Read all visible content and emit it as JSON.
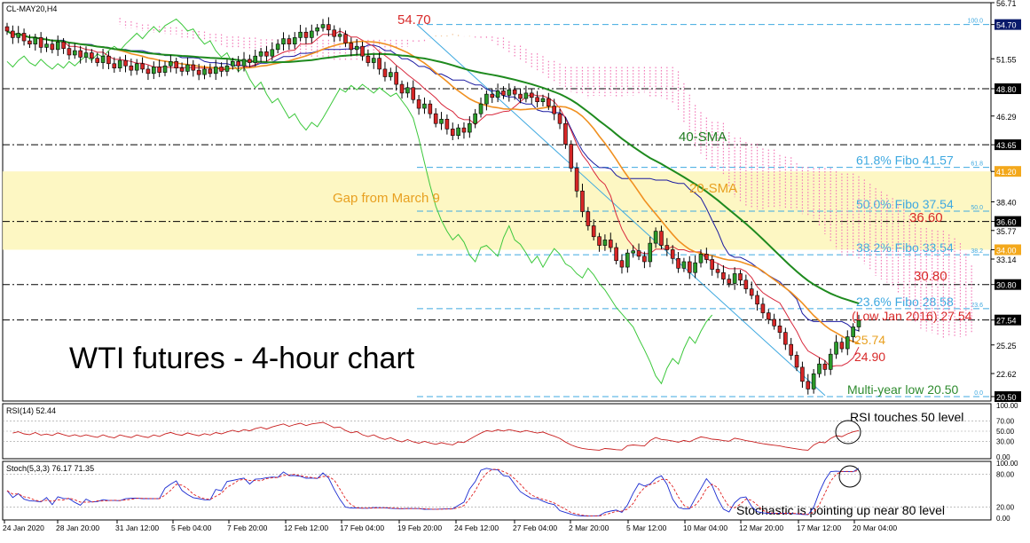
{
  "chart_data": {
    "type": "candlestick",
    "title": "WTI futures - 4-hour chart",
    "symbol_label": "CL-MAY20,H4",
    "x_tick_labels": [
      "24 Jan 2020",
      "28 Jan 20:00",
      "31 Jan 12:00",
      "5 Feb 04:00",
      "7 Feb 20:00",
      "12 Feb 12:00",
      "17 Feb 04:00",
      "19 Feb 20:00",
      "24 Feb 12:00",
      "27 Feb 04:00",
      "2 Mar 20:00",
      "5 Mar 12:00",
      "10 Mar 04:00",
      "12 Mar 20:00",
      "17 Mar 12:00",
      "20 Mar 04:00"
    ],
    "y_tick_labels": [
      "56.71",
      "54.70",
      "51.55",
      "48.80",
      "46.29",
      "43.65",
      "41.20",
      "38.40",
      "36.60",
      "35.77",
      "34.00",
      "33.14",
      "30.80",
      "27.54",
      "25.25",
      "22.62",
      "20.50"
    ],
    "price_series": {
      "start": 54.5,
      "close": [
        54.1,
        53.5,
        53.9,
        53.2,
        52.9,
        53.5,
        52.6,
        52.9,
        52.4,
        53.1,
        52.5,
        51.9,
        52.3,
        51.7,
        52.1,
        51.6,
        51.2,
        51.8,
        51.1,
        50.7,
        51.4,
        50.9,
        50.5,
        51.1,
        50.6,
        50.2,
        50.8,
        50.3,
        50.9,
        51.3,
        50.7,
        50.4,
        51.0,
        50.5,
        50.1,
        50.6,
        50.2,
        50.8,
        50.4,
        50.9,
        51.3,
        50.9,
        51.5,
        51.2,
        51.8,
        52.2,
        51.8,
        52.4,
        52.9,
        53.4,
        52.9,
        53.5,
        54.0,
        53.5,
        54.1,
        54.4,
        54.7,
        54.2,
        53.6,
        53.8,
        53.0,
        52.4,
        52.7,
        51.8,
        51.2,
        51.6,
        50.6,
        49.9,
        50.3,
        49.2,
        48.4,
        48.9,
        47.8,
        47.0,
        47.4,
        46.5,
        45.6,
        46.0,
        45.1,
        44.5,
        45.2,
        44.8,
        45.6,
        46.5,
        47.4,
        48.3,
        48.0,
        48.6,
        48.2,
        48.7,
        48.3,
        47.9,
        48.4,
        48.0,
        47.6,
        47.9,
        47.2,
        46.5,
        45.6,
        43.7,
        41.5,
        39.4,
        37.5,
        36.2,
        35.2,
        34.4,
        34.9,
        34.2,
        33.0,
        32.4,
        33.7,
        33.9,
        33.4,
        32.9,
        34.6,
        35.7,
        34.4,
        34.0,
        33.2,
        32.3,
        32.9,
        31.9,
        32.8,
        33.6,
        33.1,
        32.2,
        31.9,
        31.3,
        30.9,
        31.8,
        31.2,
        30.4,
        29.8,
        29.0,
        28.2,
        27.6,
        27.0,
        26.4,
        25.3,
        24.3,
        23.2,
        21.9,
        21.2,
        22.6,
        23.5,
        23.0,
        24.4,
        25.5,
        24.9,
        26.0,
        26.9,
        27.5
      ]
    },
    "indicators": {
      "sma40_label": "40-SMA",
      "sma20_label": "20-SMA",
      "fib_levels": [
        {
          "label": "61.8% Fibo 41.57",
          "value": 41.57,
          "tag": "61.8"
        },
        {
          "label": "50.0% Fibo 37.54",
          "value": 37.54,
          "tag": "50.0"
        },
        {
          "label": "38.2% Fibo 33.54",
          "value": 33.54,
          "tag": "38.2"
        },
        {
          "label": "23.6% Fibo 28.58",
          "value": 28.58,
          "tag": "23.6"
        },
        {
          "label": "",
          "value": 54.7,
          "tag": "100.0"
        },
        {
          "label": "",
          "value": 20.5,
          "tag": "0.0"
        }
      ],
      "horizontal_levels": [
        48.8,
        43.65,
        36.6,
        30.8,
        27.54
      ],
      "gap": {
        "label": "Gap from March 9",
        "from": 34.0,
        "to": 41.2
      },
      "annotations": [
        {
          "text": "54.70",
          "color": "#d82a2a"
        },
        {
          "text": "36.60",
          "color": "#d82a2a"
        },
        {
          "text": "30.80",
          "color": "#d82a2a"
        },
        {
          "text": "(Low Jan 2016) 27.54",
          "color": "#d82a2a"
        },
        {
          "text": "25.74",
          "color": "#e8a020"
        },
        {
          "text": "24.90",
          "color": "#d82a2a"
        },
        {
          "text": "Multi-year low 20.50",
          "color": "#2e8b2e"
        }
      ]
    },
    "rsi": {
      "label": "RSI(14) 52.44",
      "note": "RSI touches 50 level",
      "y_tick_labels": [
        "100.00",
        "70.00",
        "50.00",
        "30.00",
        "0.00"
      ]
    },
    "stoch": {
      "label": "Stoch(5,3,3) 76.17 71.35",
      "note": "Stochastic is pointing up near 80 level",
      "y_tick_labels": [
        "100.00",
        "80.00",
        "20.00",
        "0.00"
      ]
    }
  }
}
